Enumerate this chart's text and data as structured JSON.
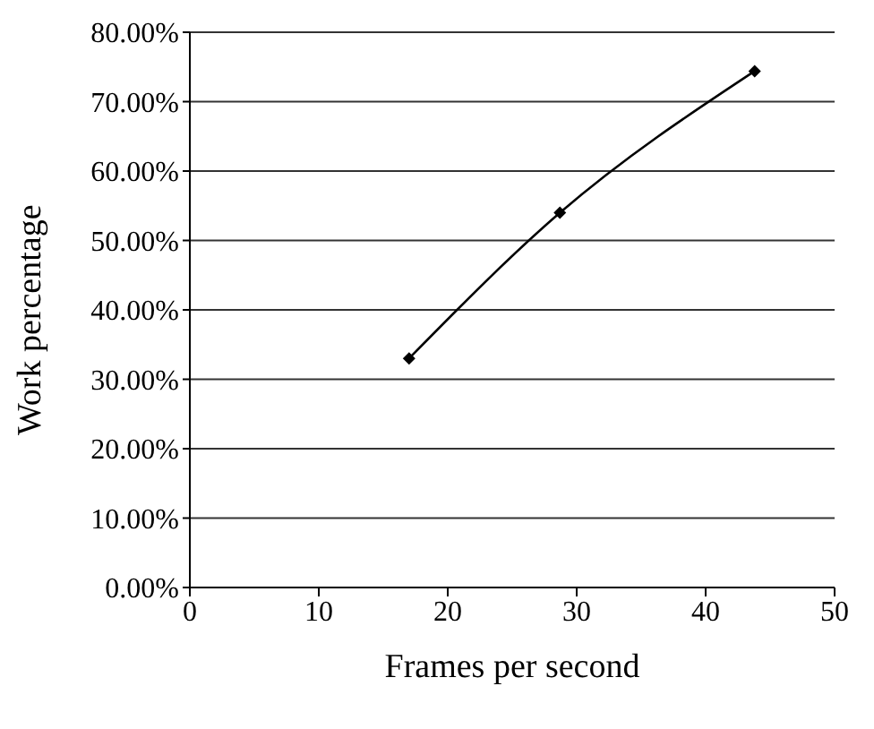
{
  "chart_data": {
    "type": "line",
    "xlabel": "Frames per second",
    "ylabel": "Work percentage",
    "x": [
      17,
      28.7,
      43.8
    ],
    "series": [
      {
        "color": "#000000",
        "values": [
          33.0,
          54.0,
          74.4
        ]
      }
    ],
    "xlim": [
      0,
      50
    ],
    "xticks": [
      0,
      10,
      20,
      30,
      40,
      50
    ],
    "ylim": [
      0,
      80
    ],
    "yticks": [
      {
        "value": 0,
        "label": "0.00%"
      },
      {
        "value": 10,
        "label": "10.00%"
      },
      {
        "value": 20,
        "label": "20.00%"
      },
      {
        "value": 30,
        "label": "30.00%"
      },
      {
        "value": 40,
        "label": "40.00%"
      },
      {
        "value": 50,
        "label": "50.00%"
      },
      {
        "value": 60,
        "label": "60.00%"
      },
      {
        "value": 70,
        "label": "70.00%"
      },
      {
        "value": 80,
        "label": "80.00%"
      }
    ],
    "grid": "y",
    "marker": "diamond",
    "line_style": "solid",
    "legend": false
  }
}
